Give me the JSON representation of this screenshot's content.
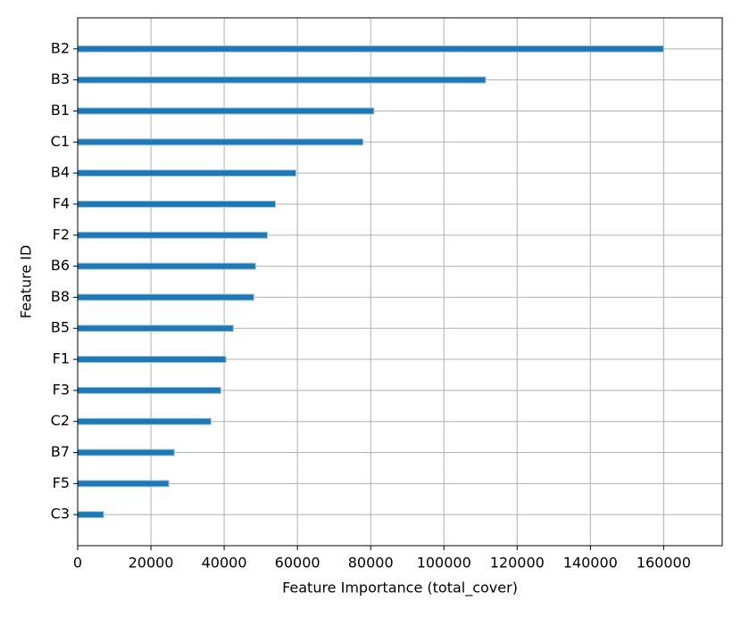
{
  "chart_data": {
    "type": "barh",
    "xlabel": "Feature Importance (total_cover)",
    "ylabel": "Feature ID",
    "categories": [
      "B2",
      "B3",
      "B1",
      "C1",
      "B4",
      "F4",
      "F2",
      "B6",
      "B8",
      "B5",
      "F1",
      "F3",
      "C2",
      "B7",
      "F5",
      "C3"
    ],
    "values": [
      160000,
      111400,
      80900,
      77900,
      59600,
      54000,
      51800,
      48600,
      48100,
      42500,
      40500,
      39100,
      36400,
      26400,
      24900,
      7100
    ],
    "color": "#1f77b4",
    "xlim": [
      0,
      176000
    ],
    "xticks": [
      0,
      20000,
      40000,
      60000,
      80000,
      100000,
      120000,
      140000,
      160000
    ],
    "grid": true
  }
}
